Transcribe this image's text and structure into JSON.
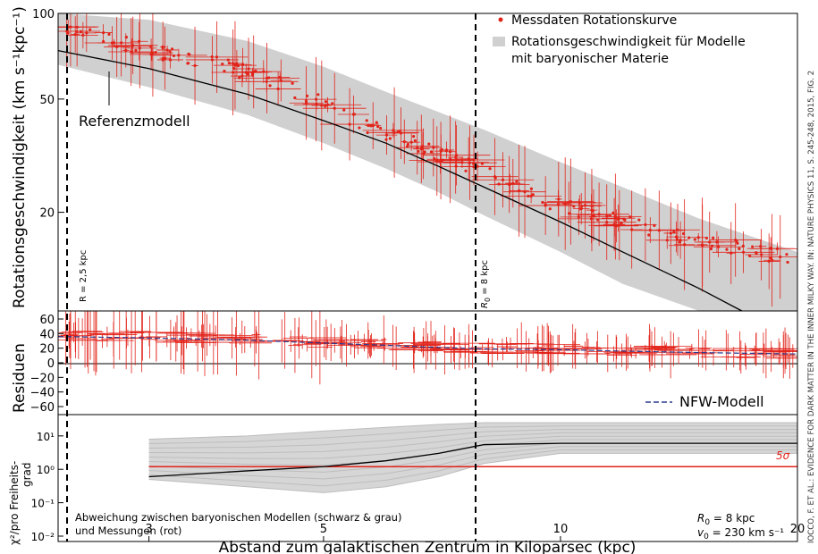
{
  "chart_data": [
    {
      "type": "scatter",
      "panel": "rotation-curve",
      "ylabel": "Rotationsgeschwindigkeit (km s⁻¹kpc⁻¹)",
      "xscale": "log",
      "yscale": "log",
      "xlim": [
        2.3,
        20
      ],
      "ylim": [
        9,
        100
      ],
      "yticks": [
        "100",
        "50",
        "20"
      ],
      "legend": {
        "position": "top-right",
        "measured": "Messdaten Rotationskurve",
        "band_line1": "Rotationsgeschwindigkeit für Modelle",
        "band_line2": "mit baryonischer Materie"
      },
      "series": [
        {
          "name": "Messdaten Rotationskurve",
          "color": "#e2231a",
          "x": [
            2.3,
            2.5,
            2.7,
            3.0,
            3.3,
            3.7,
            4.0,
            4.5,
            5.0,
            5.5,
            6.0,
            6.5,
            7.0,
            7.5,
            8.0,
            8.5,
            9.0,
            10.0,
            11.0,
            12.0,
            13.0,
            14.0,
            15.0,
            16.0,
            17.0,
            18.0,
            19.0,
            20.0
          ],
          "y": [
            90,
            85,
            80,
            75,
            70,
            66,
            62,
            55,
            48,
            42,
            38,
            35,
            32,
            30,
            28,
            26,
            24,
            21,
            20,
            18.5,
            17.5,
            16.5,
            16,
            15.5,
            15,
            14.5,
            14,
            14
          ]
        },
        {
          "name": "Referenzmodell",
          "color": "#000000",
          "x": [
            2.3,
            3.0,
            4.0,
            5.0,
            6.0,
            7.0,
            8.0,
            10.0,
            12.0,
            15.0,
            17.0
          ],
          "y": [
            74,
            64,
            52,
            42,
            35,
            29,
            24.5,
            18.5,
            14.5,
            10.8,
            9
          ]
        }
      ],
      "band": {
        "name": "Rotationsgeschwindigkeit für Modelle mit baryonischer Materie",
        "x": [
          2.3,
          3.0,
          4.0,
          5.0,
          6.0,
          7.0,
          8.0,
          10.0,
          12.0,
          15.0,
          20.0
        ],
        "lower": [
          66,
          55,
          44,
          35,
          28.5,
          23.5,
          19.5,
          14.5,
          11.2,
          9,
          9
        ],
        "upper": [
          100,
          95,
          80,
          65,
          53,
          45,
          39,
          30,
          24.5,
          19,
          14.5
        ]
      },
      "annotations": {
        "reference_label": "Referenzmodell",
        "vline1": "R = 2,5 kpc",
        "vline2": "R",
        "vline2_sub": "0",
        "vline2_rest": " = 8 kpc"
      }
    },
    {
      "type": "scatter",
      "panel": "residuals",
      "ylabel": "Residuen",
      "ylim": [
        -70,
        70
      ],
      "yticks": [
        "60",
        "40",
        "20",
        "0",
        "−20",
        "−40",
        "−60"
      ],
      "legend": {
        "position": "bottom-right",
        "nfw": "NFW-Modell"
      },
      "series": [
        {
          "name": "Residuen",
          "color": "#e2231a",
          "x": [
            2.3,
            3.0,
            4.0,
            5.0,
            6.0,
            7.0,
            8.0,
            10.0,
            12.0,
            15.0,
            20.0
          ],
          "y": [
            38,
            36,
            33,
            28,
            25,
            22,
            20,
            19,
            17,
            15,
            13
          ]
        },
        {
          "name": "NFW-Modell",
          "color": "#2b3c8f",
          "x": [
            2.3,
            3.0,
            4.0,
            5.0,
            6.0,
            7.0,
            8.0,
            10.0,
            12.0,
            15.0,
            20.0
          ],
          "y": [
            36,
            34,
            31,
            27,
            24,
            21,
            19,
            18,
            16,
            14,
            12
          ]
        }
      ]
    },
    {
      "type": "line",
      "panel": "chi2",
      "ylabel_line1": "χ²/pro Freiheits-",
      "ylabel_line2": "grad",
      "yscale": "log",
      "ylim": [
        0.01,
        30
      ],
      "yticks": [
        "10¹",
        "10⁰",
        "10⁻¹",
        "10⁻²"
      ],
      "xlabel": "Abstand zum galaktischen Zentrum in Kiloparsec (kpc)",
      "xticks": [
        "3",
        "5",
        "10",
        "20"
      ],
      "series": [
        {
          "name": "Referenzmodell",
          "color": "#000000",
          "x": [
            3.0,
            4.0,
            5.0,
            6.0,
            7.0,
            8.0,
            10.0,
            15.0,
            20.0
          ],
          "y": [
            0.6,
            0.9,
            1.2,
            1.8,
            3.0,
            5.5,
            6,
            6,
            6
          ]
        },
        {
          "name": "5σ",
          "color": "#e2231a",
          "x": [
            3.0,
            20.0
          ],
          "y": [
            1.2,
            1.2
          ]
        }
      ],
      "grey_models_upper": [
        8,
        10,
        14,
        18,
        22,
        25,
        25,
        25,
        25
      ],
      "grey_models_lower": [
        0.5,
        0.3,
        0.2,
        0.3,
        0.6,
        1.5,
        3,
        3,
        3
      ],
      "sigma_label": "5σ",
      "note_line1": "Abweichung zwischen baryonischen Modellen (schwarz & grau)",
      "note_line2": "und Messungen (rot)",
      "param_r0_label": "R",
      "param_r0_sub": "0",
      "param_r0_value": " = 8 kpc",
      "param_v0_label": "v",
      "param_v0_sub": "0",
      "param_v0_value": " = 230 km s⁻¹"
    }
  ],
  "credit": "IOCCO, F. ET AL.: EVIDENCE FOR DARK MATTER IN THE INNER MILKY WAY. IN: NATURE PHYSICS 11, S. 245-248, 2015, FIG. 2",
  "colors": {
    "measured": "#e2231a",
    "band": "#d0d0d0",
    "model": "#000000",
    "nfw": "#2b3c8f"
  }
}
